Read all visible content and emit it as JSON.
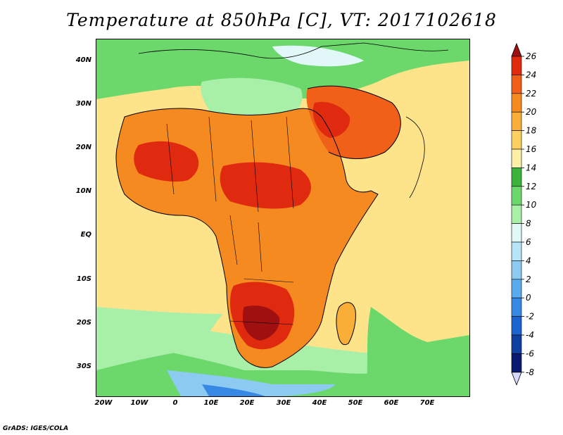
{
  "title": "Temperature at 850hPa [C], VT: 2017102618",
  "credit": "GrADS: IGES/COLA",
  "map": {
    "lat_labels": [
      "40N",
      "30N",
      "20N",
      "10N",
      "EQ",
      "10S",
      "20S",
      "30S"
    ],
    "lon_labels": [
      "20W",
      "10W",
      "0",
      "10E",
      "20E",
      "30E",
      "40E",
      "50E",
      "60E",
      "70E"
    ],
    "land_color": "#f0a23a",
    "ocean_color": "#fde48a"
  },
  "legend": {
    "levels": [
      "26",
      "24",
      "22",
      "20",
      "18",
      "16",
      "14",
      "12",
      "10",
      "8",
      "6",
      "4",
      "2",
      "0",
      "-2",
      "-4",
      "-6",
      "-8"
    ],
    "colors": [
      "#a01010",
      "#e02a10",
      "#f06018",
      "#f58a20",
      "#f9ae38",
      "#fcd060",
      "#fef0a8",
      "#3cb43c",
      "#6cd86c",
      "#a8f0a8",
      "#e2f8f8",
      "#b8e4f8",
      "#8ccaf2",
      "#5aaaee",
      "#3688e4",
      "#1e64d0",
      "#1040a0",
      "#0a1a6e",
      "#d8d8ff"
    ]
  }
}
